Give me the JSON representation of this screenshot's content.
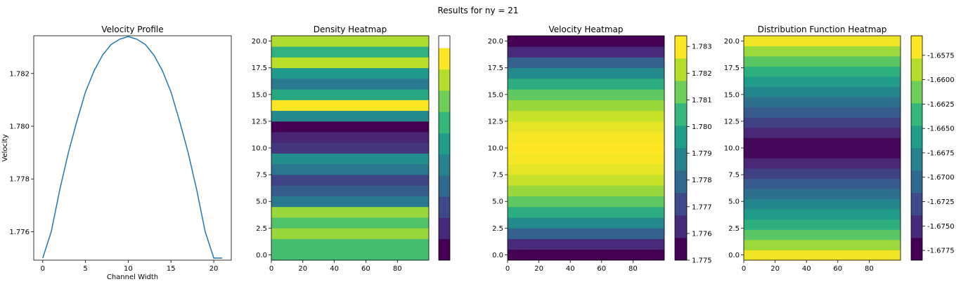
{
  "figure": {
    "suptitle": "Results for ny = 21"
  },
  "chart_data": [
    {
      "type": "line",
      "title": "Velocity Profile",
      "xlabel": "Channel Width",
      "ylabel": "Velocity",
      "xlim": [
        -1.05,
        22.05
      ],
      "ylim": [
        1.77492,
        1.78343
      ],
      "xticks": [
        0,
        5,
        10,
        15,
        20
      ],
      "yticks": [
        1.776,
        1.778,
        1.78,
        1.782
      ],
      "ytick_labels": [
        "1.776",
        "1.778",
        "1.780",
        "1.782"
      ],
      "series": [
        {
          "color": "#1f77b4",
          "x": [
            0,
            1,
            2,
            3,
            4,
            5,
            6,
            7,
            8,
            9,
            10,
            11,
            12,
            13,
            14,
            15,
            16,
            17,
            18,
            19,
            20,
            21
          ],
          "y": [
            1.775,
            1.776,
            1.7776,
            1.779,
            1.7802,
            1.7813,
            1.7821,
            1.7827,
            1.7831,
            1.7833,
            1.7834,
            1.7833,
            1.7831,
            1.7827,
            1.7821,
            1.7813,
            1.7802,
            1.779,
            1.7776,
            1.776,
            1.775,
            null
          ]
        }
      ]
    },
    {
      "type": "heatmap",
      "title": "Density Heatmap",
      "xlim": [
        0,
        100
      ],
      "ylim": [
        -0.5,
        20.5
      ],
      "xticks": [
        0,
        20,
        40,
        60,
        80
      ],
      "yticks": [
        0,
        2.5,
        5,
        7.5,
        10,
        12.5,
        15,
        17.5,
        20
      ],
      "ytick_labels": [
        "0.0",
        "2.5",
        "5.0",
        "7.5",
        "10.0",
        "12.5",
        "15.0",
        "17.5",
        "20.0"
      ],
      "rows_bottom_to_top": [
        0.68,
        0.68,
        0.82,
        0.7,
        0.82,
        0.4,
        0.28,
        0.2,
        0.38,
        0.48,
        0.15,
        0.1,
        0.0,
        0.46,
        0.97,
        0.58,
        0.4,
        0.52,
        0.87,
        0.62,
        0.85
      ],
      "colorbar": {
        "ticks": [],
        "extend_top_white": true
      }
    },
    {
      "type": "heatmap",
      "title": "Velocity Heatmap",
      "xlim": [
        0,
        100
      ],
      "ylim": [
        -0.5,
        20.5
      ],
      "xticks": [
        0,
        20,
        40,
        60,
        80
      ],
      "yticks": [
        0,
        2.5,
        5,
        7.5,
        10,
        12.5,
        15,
        17.5,
        20
      ],
      "ytick_labels": [
        "0.0",
        "2.5",
        "5.0",
        "7.5",
        "10.0",
        "12.5",
        "15.0",
        "17.5",
        "20.0"
      ],
      "rows_bottom_to_top": [
        1.775,
        1.776,
        1.7776,
        1.779,
        1.7802,
        1.7813,
        1.7821,
        1.7827,
        1.7831,
        1.7833,
        1.7834,
        1.7833,
        1.7831,
        1.7827,
        1.7821,
        1.7813,
        1.7802,
        1.779,
        1.7776,
        1.776,
        1.775
      ],
      "colorbar": {
        "vmin": 1.775,
        "vmax": 1.7834,
        "ticks": [
          1.775,
          1.776,
          1.777,
          1.778,
          1.779,
          1.78,
          1.781,
          1.782,
          1.783
        ],
        "tick_labels": [
          "1.775",
          "1.776",
          "1.777",
          "1.778",
          "1.779",
          "1.780",
          "1.781",
          "1.782",
          "1.783"
        ]
      }
    },
    {
      "type": "heatmap",
      "title": "Distribution Function Heatmap",
      "xlim": [
        0,
        100
      ],
      "ylim": [
        -0.5,
        20.5
      ],
      "xticks": [
        0,
        20,
        40,
        60,
        80
      ],
      "yticks": [
        0,
        2.5,
        5,
        7.5,
        10,
        12.5,
        15,
        17.5,
        20
      ],
      "ytick_labels": [
        "0.0",
        "2.5",
        "5.0",
        "7.5",
        "10.0",
        "12.5",
        "15.0",
        "17.5",
        "20.0"
      ],
      "rows_bottom_to_top": [
        -1.656,
        -1.659,
        -1.6615,
        -1.664,
        -1.666,
        -1.668,
        -1.67,
        -1.672,
        -1.674,
        -1.676,
        -1.678,
        -1.678,
        -1.676,
        -1.674,
        -1.672,
        -1.67,
        -1.668,
        -1.666,
        -1.664,
        -1.6615,
        -1.659,
        -1.656
      ],
      "colorbar": {
        "vmin": -1.6785,
        "vmax": -1.6555,
        "ticks": [
          -1.6775,
          -1.675,
          -1.6725,
          -1.67,
          -1.6675,
          -1.665,
          -1.6625,
          -1.66,
          -1.6575
        ],
        "tick_labels": [
          "-1.6775",
          "-1.6750",
          "-1.6725",
          "-1.6700",
          "-1.6675",
          "-1.6650",
          "-1.6625",
          "-1.6600",
          "-1.6575"
        ]
      }
    }
  ]
}
